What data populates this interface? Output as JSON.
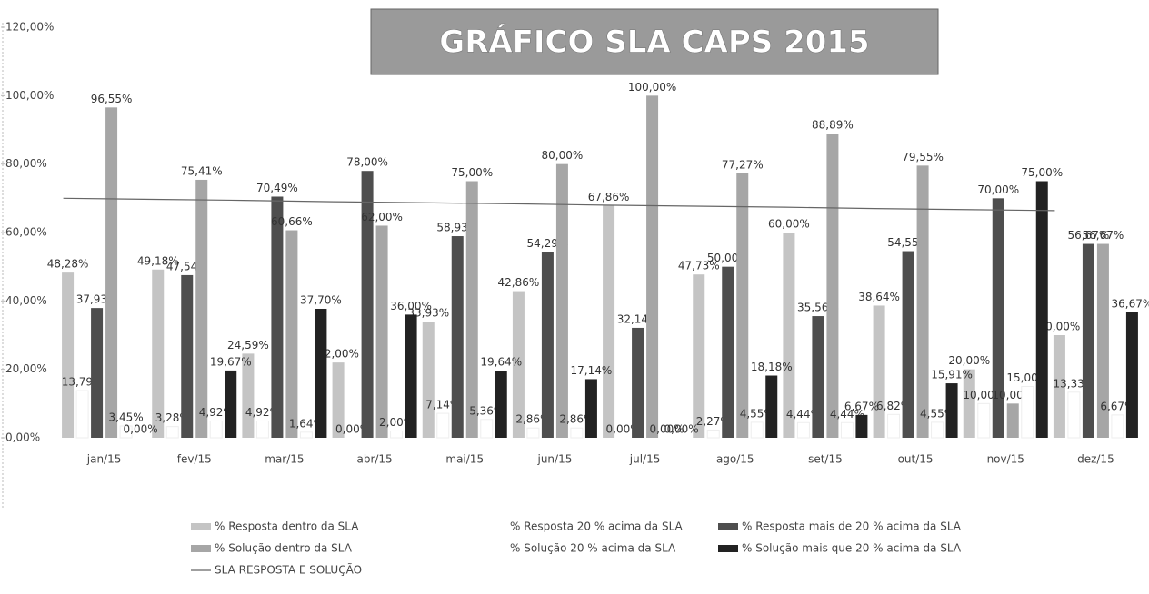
{
  "chart_data": {
    "type": "bar",
    "title": "GRÁFICO SLA CAPS 2015",
    "categories": [
      "jan/15",
      "fev/15",
      "mar/15",
      "abr/15",
      "mai/15",
      "jun/15",
      "jul/15",
      "ago/15",
      "set/15",
      "out/15",
      "nov/15",
      "dez/15"
    ],
    "ylim": [
      0,
      120
    ],
    "yticks": [
      {
        "value": 0,
        "label": "0,00%"
      },
      {
        "value": 20,
        "label": "20,00%"
      },
      {
        "value": 40,
        "label": "40,00%"
      },
      {
        "value": 60,
        "label": "60,00%"
      },
      {
        "value": 80,
        "label": "80,00%"
      },
      {
        "value": 100,
        "label": "100,00%"
      },
      {
        "value": 120,
        "label": "120,00%"
      }
    ],
    "series": [
      {
        "name": "% Resposta dentro da SLA",
        "color": "#c4c4c4",
        "values": [
          48.28,
          49.18,
          24.59,
          22.0,
          33.93,
          42.86,
          67.86,
          47.73,
          60.0,
          38.64,
          20.0,
          30.0
        ],
        "value_labels": [
          "48,28%",
          "49,18%",
          "24,59%",
          "22,00%",
          "33,93%",
          "42,86%",
          "67,86%",
          "47,73%",
          "60,00%",
          "38,64%",
          "20,00%",
          "30,00%"
        ]
      },
      {
        "name": "% Resposta 20 % acima da SLA",
        "color": "#ffffff",
        "values": [
          13.79,
          3.28,
          4.92,
          0.0,
          7.14,
          2.86,
          0.0,
          2.27,
          4.44,
          6.82,
          10.0,
          13.33
        ],
        "value_labels": [
          "13,79%",
          "3,28%",
          "4,92%",
          "0,00%",
          "7,14%",
          "2,86%",
          "0,00%",
          "2,27%",
          "4,44%",
          "6,82%",
          "10,00%",
          "13,33%"
        ]
      },
      {
        "name": "% Resposta mais de 20 % acima da SLA",
        "color": "#4e4e4e",
        "values": [
          37.93,
          47.54,
          70.49,
          78.0,
          58.93,
          54.29,
          32.14,
          50.0,
          35.56,
          54.55,
          70.0,
          56.67
        ],
        "value_labels": [
          "37,93%",
          "47,54%",
          "70,49%",
          "78,00%",
          "58,93%",
          "54,29%",
          "32,14%",
          "50,00%",
          "35,56%",
          "54,55%",
          "70,00%",
          "56,67%"
        ]
      },
      {
        "name": "% Solução dentro da SLA",
        "color": "#a6a6a6",
        "values": [
          96.55,
          75.41,
          60.66,
          62.0,
          75.0,
          80.0,
          100.0,
          77.27,
          88.89,
          79.55,
          10.0,
          56.67
        ],
        "value_labels": [
          "96,55%",
          "75,41%",
          "60,66%",
          "62,00%",
          "75,00%",
          "80,00%",
          "100,00%",
          "77,27%",
          "88,89%",
          "79,55%",
          "10,00%",
          "56,67%"
        ]
      },
      {
        "name": "% Solução 20 % acima da SLA",
        "color": "#ffffff",
        "values": [
          3.45,
          4.92,
          1.64,
          2.0,
          5.36,
          2.86,
          0.0,
          4.55,
          4.44,
          4.55,
          15.0,
          6.67
        ],
        "value_labels": [
          "3,45%",
          "4,92%",
          "1,64%",
          "2,00%",
          "5,36%",
          "2,86%",
          "0,00%",
          "4,55%",
          "4,44%",
          "4,55%",
          "15,00%",
          "6,67%"
        ]
      },
      {
        "name": "% Solução mais que 20 % acima da SLA",
        "color": "#222222",
        "values": [
          0.0,
          19.67,
          37.7,
          36.0,
          19.64,
          17.14,
          0.0,
          18.18,
          6.67,
          15.91,
          75.0,
          36.67
        ],
        "value_labels": [
          "0,00%",
          "19,67%",
          "37,70%",
          "36,00%",
          "19,64%",
          "17,14%",
          "0,00%",
          "18,18%",
          "6,67%",
          "15,91%",
          "75,00%",
          "36,67%"
        ]
      },
      {
        "name": "SLA RESPOSTA E SOLUÇÃO",
        "type": "line",
        "color": "#666666",
        "values": [
          70,
          69.7,
          69.4,
          69,
          68.7,
          68.4,
          68,
          67.7,
          67.4,
          67,
          66.7,
          66.4
        ]
      }
    ]
  }
}
